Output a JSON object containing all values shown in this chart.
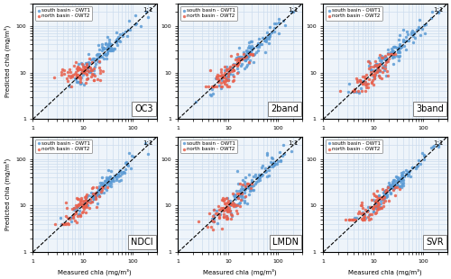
{
  "subplots": [
    "OC3",
    "2band",
    "3band",
    "NDCI",
    "LMDN",
    "SVR"
  ],
  "north_color": "#E8604C",
  "south_color": "#5B9BD5",
  "north_label": "north basin - OWT2",
  "south_label": "south basin - OWT1",
  "xlim": [
    1,
    300
  ],
  "ylim": [
    1,
    300
  ],
  "xlabel": "Measured chla (mg/m³)",
  "ylabel": "Predicted chla (mg/m³)",
  "one_to_one_label": "1:1",
  "grid_color": "#CCDDEE",
  "background_color": "#EEF4FA",
  "seeds": [
    42,
    43,
    44,
    45,
    46,
    47
  ],
  "n_north": 80,
  "n_south": 120
}
